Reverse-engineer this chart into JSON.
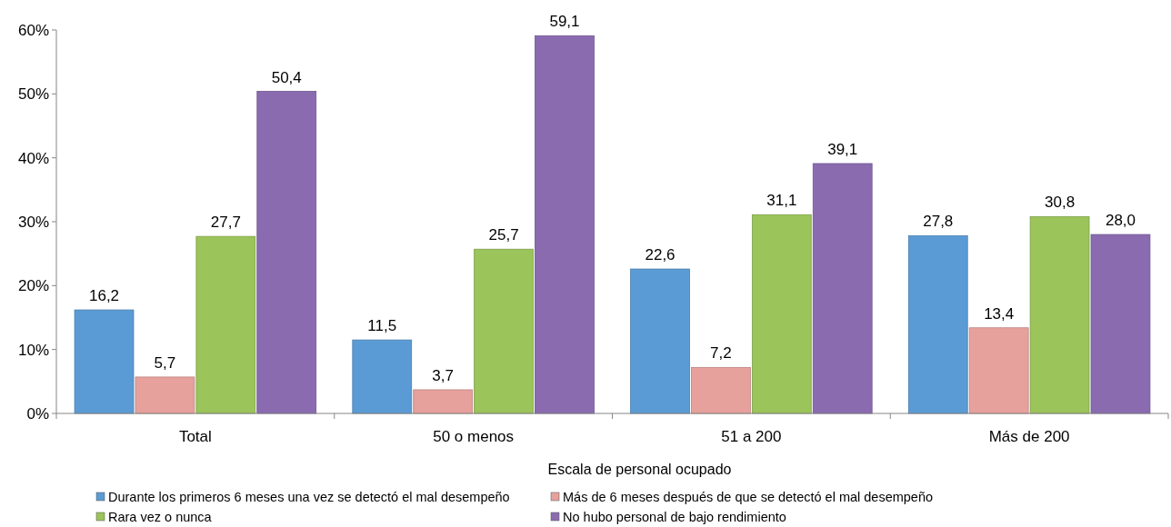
{
  "chart_data": {
    "type": "bar",
    "xlabel": "Escala de personal ocupado",
    "categories": [
      "Total",
      "50 o menos",
      "51 a 200",
      "Más de 200"
    ],
    "series": [
      {
        "name": "Durante los primeros 6 meses una vez se detectó el mal desempeño",
        "color": "#5b9bd5",
        "values": [
          16.2,
          11.5,
          22.6,
          27.8
        ],
        "value_labels": [
          "16,2",
          "11,5",
          "22,6",
          "27,8"
        ]
      },
      {
        "name": "Más de 6 meses después de que se detectó el mal desempeño",
        "color": "#e6a19d",
        "values": [
          5.7,
          3.7,
          7.2,
          13.4
        ],
        "value_labels": [
          "5,7",
          "3,7",
          "7,2",
          "13,4"
        ]
      },
      {
        "name": "Rara vez o nunca",
        "color": "#9bc45a",
        "values": [
          27.7,
          25.7,
          31.1,
          30.8
        ],
        "value_labels": [
          "27,7",
          "25,7",
          "31,1",
          "30,8"
        ]
      },
      {
        "name": "No hubo personal de bajo rendimiento",
        "color": "#8a6bb0",
        "values": [
          50.4,
          59.1,
          39.1,
          28.0
        ],
        "value_labels": [
          "50,4",
          "59,1",
          "39,1",
          "28,0"
        ]
      }
    ],
    "ylim": [
      0,
      60
    ],
    "yticks": [
      {
        "value": 0,
        "label": "0%"
      },
      {
        "value": 10,
        "label": "10%"
      },
      {
        "value": 20,
        "label": "20%"
      },
      {
        "value": 30,
        "label": "30%"
      },
      {
        "value": 40,
        "label": "40%"
      },
      {
        "value": 50,
        "label": "50%"
      },
      {
        "value": 60,
        "label": "60%"
      }
    ],
    "grid": false,
    "legend": "bottom"
  }
}
